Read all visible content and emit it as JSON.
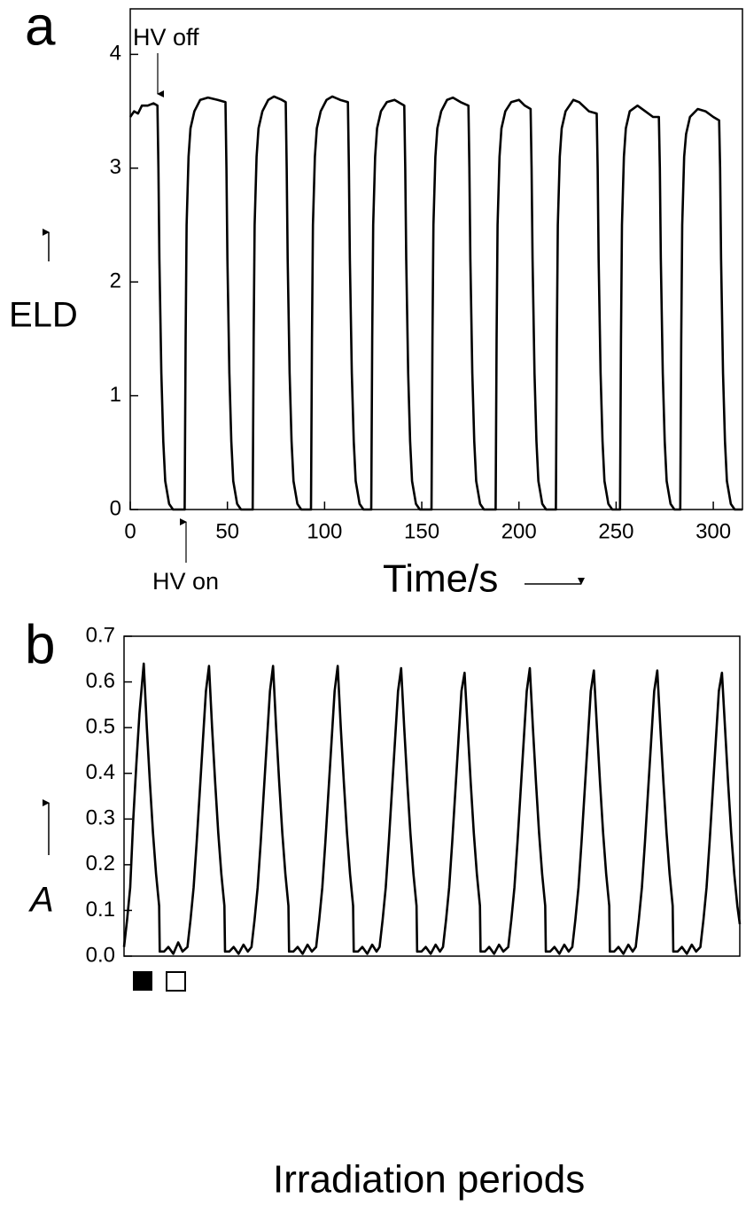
{
  "chart_data": [
    {
      "type": "line",
      "panel_label": "a",
      "y_label": "ELD",
      "x_label": "Time/s",
      "annotations": [
        "HV off",
        "HV on"
      ],
      "color": "#000000",
      "xlim": [
        0,
        315
      ],
      "ylim": [
        0,
        4.4
      ],
      "xticks": [
        0,
        50,
        100,
        150,
        200,
        250,
        300
      ],
      "yticks": [
        0,
        1,
        2,
        3,
        4
      ],
      "x": [
        0,
        2,
        4,
        6,
        9,
        12,
        14,
        14.5,
        15,
        16,
        17,
        18,
        20,
        22,
        28,
        28.5,
        29,
        30,
        31,
        33,
        36,
        40,
        45,
        49,
        49.5,
        50,
        51,
        52,
        53,
        55,
        57,
        63,
        63.5,
        64,
        65,
        66,
        68,
        71,
        74,
        78,
        80,
        80.5,
        81,
        82,
        83,
        84,
        86,
        88,
        93,
        93.5,
        94,
        95,
        96,
        98,
        101,
        104,
        108,
        112,
        112.5,
        113,
        114,
        115,
        116,
        118,
        120,
        124,
        124.5,
        125,
        126,
        127,
        129,
        132,
        136,
        139,
        141,
        141.5,
        142,
        143,
        144,
        145,
        147,
        149,
        155,
        155.5,
        156,
        157,
        158,
        160,
        163,
        166,
        170,
        174,
        174.5,
        175,
        176,
        177,
        178,
        180,
        182,
        188,
        188.5,
        189,
        190,
        191,
        193,
        196,
        200,
        203,
        206,
        206.5,
        207,
        208,
        209,
        210,
        212,
        214,
        219,
        219.5,
        220,
        221,
        222,
        224,
        228,
        231,
        236,
        240,
        240.5,
        241,
        242,
        243,
        244,
        246,
        248,
        252,
        252.5,
        253,
        254,
        255,
        257,
        261,
        265,
        269,
        272,
        272.5,
        273,
        274,
        275,
        276,
        278,
        280,
        283,
        283.5,
        284,
        285,
        286,
        288,
        292,
        296,
        300,
        303,
        303.5,
        304,
        305,
        306,
        307,
        309,
        311,
        315
      ],
      "values": [
        3.45,
        3.5,
        3.48,
        3.55,
        3.55,
        3.57,
        3.55,
        3.0,
        2.2,
        1.2,
        0.6,
        0.25,
        0.05,
        0,
        0,
        1.5,
        2.5,
        3.1,
        3.35,
        3.5,
        3.6,
        3.62,
        3.6,
        3.58,
        3.0,
        2.2,
        1.2,
        0.6,
        0.25,
        0.05,
        0,
        0,
        1.5,
        2.5,
        3.1,
        3.35,
        3.5,
        3.6,
        3.63,
        3.6,
        3.58,
        3.0,
        2.2,
        1.2,
        0.6,
        0.25,
        0.05,
        0,
        0,
        1.5,
        2.5,
        3.1,
        3.35,
        3.5,
        3.6,
        3.63,
        3.6,
        3.58,
        3.0,
        2.2,
        1.2,
        0.6,
        0.25,
        0.05,
        0,
        0,
        1.5,
        2.5,
        3.1,
        3.35,
        3.5,
        3.58,
        3.6,
        3.57,
        3.55,
        3.0,
        2.2,
        1.2,
        0.6,
        0.25,
        0.05,
        0,
        0,
        1.5,
        2.5,
        3.1,
        3.35,
        3.5,
        3.6,
        3.62,
        3.58,
        3.55,
        3.0,
        2.2,
        1.2,
        0.6,
        0.25,
        0.05,
        0,
        0,
        1.5,
        2.5,
        3.1,
        3.35,
        3.5,
        3.58,
        3.6,
        3.55,
        3.52,
        3.0,
        2.2,
        1.2,
        0.6,
        0.25,
        0.05,
        0,
        0,
        1.5,
        2.5,
        3.1,
        3.35,
        3.5,
        3.6,
        3.58,
        3.5,
        3.48,
        3.0,
        2.2,
        1.2,
        0.6,
        0.25,
        0.05,
        0,
        0,
        1.5,
        2.5,
        3.1,
        3.35,
        3.5,
        3.55,
        3.5,
        3.45,
        3.45,
        3.0,
        2.2,
        1.2,
        0.6,
        0.25,
        0.05,
        0,
        0,
        1.5,
        2.5,
        3.1,
        3.3,
        3.45,
        3.52,
        3.5,
        3.45,
        3.42,
        3.0,
        2.2,
        1.2,
        0.6,
        0.25,
        0.05,
        0,
        0
      ]
    },
    {
      "type": "line",
      "panel_label": "b",
      "y_label": "A",
      "x_label": "Irradiation periods",
      "color": "#000000",
      "xlim": [
        0,
        100
      ],
      "ylim": [
        0,
        0.7
      ],
      "yticks": [
        {
          "value": 0,
          "label": "0.0"
        },
        0.1,
        0.2,
        0.3,
        0.4,
        0.5,
        0.6,
        0.7
      ],
      "x": [
        0,
        0.5,
        1,
        1.5,
        2,
        2.5,
        3.2,
        3.7,
        4.2,
        4.7,
        5.2,
        5.7,
        5.8,
        6.5,
        7.2,
        8,
        8.8,
        9.5,
        10.3,
        10.8,
        11.3,
        11.8,
        12.3,
        12.8,
        13.3,
        13.8,
        14.3,
        14.8,
        15.3,
        15.8,
        16.3,
        16.4,
        17.1,
        17.8,
        18.6,
        19.4,
        20.1,
        20.7,
        21.2,
        21.7,
        22.2,
        22.7,
        23.2,
        23.7,
        24.2,
        24.7,
        25.2,
        25.7,
        26.2,
        26.7,
        26.8,
        27.5,
        28.2,
        29,
        29.8,
        30.5,
        31.2,
        31.7,
        32.2,
        32.7,
        33.2,
        33.7,
        34.2,
        34.7,
        35.2,
        35.7,
        36.2,
        36.7,
        37.2,
        37.3,
        38,
        38.7,
        39.5,
        40.3,
        41,
        41.5,
        42,
        42.5,
        43,
        43.5,
        44,
        44.5,
        45,
        45.5,
        46,
        46.5,
        47,
        47.5,
        47.6,
        48.3,
        49,
        49.8,
        50.6,
        51.3,
        51.8,
        52.3,
        52.8,
        53.3,
        53.8,
        54.3,
        54.8,
        55.3,
        55.8,
        56.3,
        56.8,
        57.3,
        57.8,
        57.9,
        58.6,
        59.3,
        60.1,
        60.9,
        61.6,
        62.4,
        62.9,
        63.4,
        63.9,
        64.4,
        64.9,
        65.4,
        65.9,
        66.4,
        66.9,
        67.4,
        67.9,
        68.4,
        68.5,
        69.2,
        69.9,
        70.7,
        71.5,
        72.2,
        72.8,
        73.3,
        73.8,
        74.3,
        74.8,
        75.3,
        75.8,
        76.3,
        76.8,
        77.3,
        77.8,
        78.3,
        78.8,
        78.9,
        79.6,
        80.3,
        81.1,
        81.9,
        82.6,
        83.1,
        83.6,
        84.1,
        84.6,
        85.1,
        85.6,
        86.1,
        86.6,
        87.1,
        87.6,
        88.1,
        88.6,
        89.1,
        89.2,
        89.9,
        90.6,
        91.4,
        92.2,
        92.9,
        93.6,
        94.1,
        94.6,
        95.1,
        95.6,
        96.1,
        96.6,
        97.1,
        97.6,
        98.1,
        98.6,
        99.1,
        99.6,
        100
      ],
      "values": [
        0.02,
        0.08,
        0.15,
        0.3,
        0.42,
        0.53,
        0.64,
        0.5,
        0.38,
        0.27,
        0.18,
        0.11,
        0.01,
        0.01,
        0.02,
        0.005,
        0.03,
        0.01,
        0.02,
        0.08,
        0.15,
        0.25,
        0.36,
        0.47,
        0.58,
        0.635,
        0.5,
        0.38,
        0.27,
        0.18,
        0.11,
        0.01,
        0.01,
        0.02,
        0.005,
        0.025,
        0.01,
        0.02,
        0.08,
        0.15,
        0.25,
        0.36,
        0.47,
        0.58,
        0.635,
        0.5,
        0.38,
        0.27,
        0.18,
        0.11,
        0.01,
        0.01,
        0.02,
        0.005,
        0.025,
        0.01,
        0.02,
        0.08,
        0.15,
        0.25,
        0.36,
        0.47,
        0.58,
        0.635,
        0.5,
        0.38,
        0.27,
        0.18,
        0.11,
        0.01,
        0.01,
        0.02,
        0.005,
        0.025,
        0.01,
        0.02,
        0.08,
        0.15,
        0.25,
        0.36,
        0.47,
        0.58,
        0.63,
        0.5,
        0.38,
        0.27,
        0.18,
        0.11,
        0.01,
        0.01,
        0.02,
        0.005,
        0.025,
        0.01,
        0.02,
        0.08,
        0.15,
        0.25,
        0.36,
        0.47,
        0.58,
        0.62,
        0.5,
        0.38,
        0.27,
        0.18,
        0.11,
        0.01,
        0.01,
        0.02,
        0.005,
        0.025,
        0.01,
        0.02,
        0.08,
        0.15,
        0.25,
        0.36,
        0.47,
        0.58,
        0.63,
        0.5,
        0.38,
        0.27,
        0.18,
        0.11,
        0.01,
        0.01,
        0.02,
        0.005,
        0.025,
        0.01,
        0.02,
        0.08,
        0.15,
        0.25,
        0.36,
        0.47,
        0.58,
        0.625,
        0.5,
        0.38,
        0.27,
        0.18,
        0.11,
        0.01,
        0.01,
        0.02,
        0.005,
        0.025,
        0.01,
        0.02,
        0.08,
        0.15,
        0.25,
        0.36,
        0.47,
        0.58,
        0.625,
        0.5,
        0.38,
        0.27,
        0.18,
        0.11,
        0.01,
        0.01,
        0.02,
        0.005,
        0.025,
        0.01,
        0.02,
        0.08,
        0.15,
        0.25,
        0.36,
        0.47,
        0.58,
        0.62,
        0.5,
        0.38,
        0.27,
        0.18,
        0.11,
        0.07
      ]
    }
  ]
}
